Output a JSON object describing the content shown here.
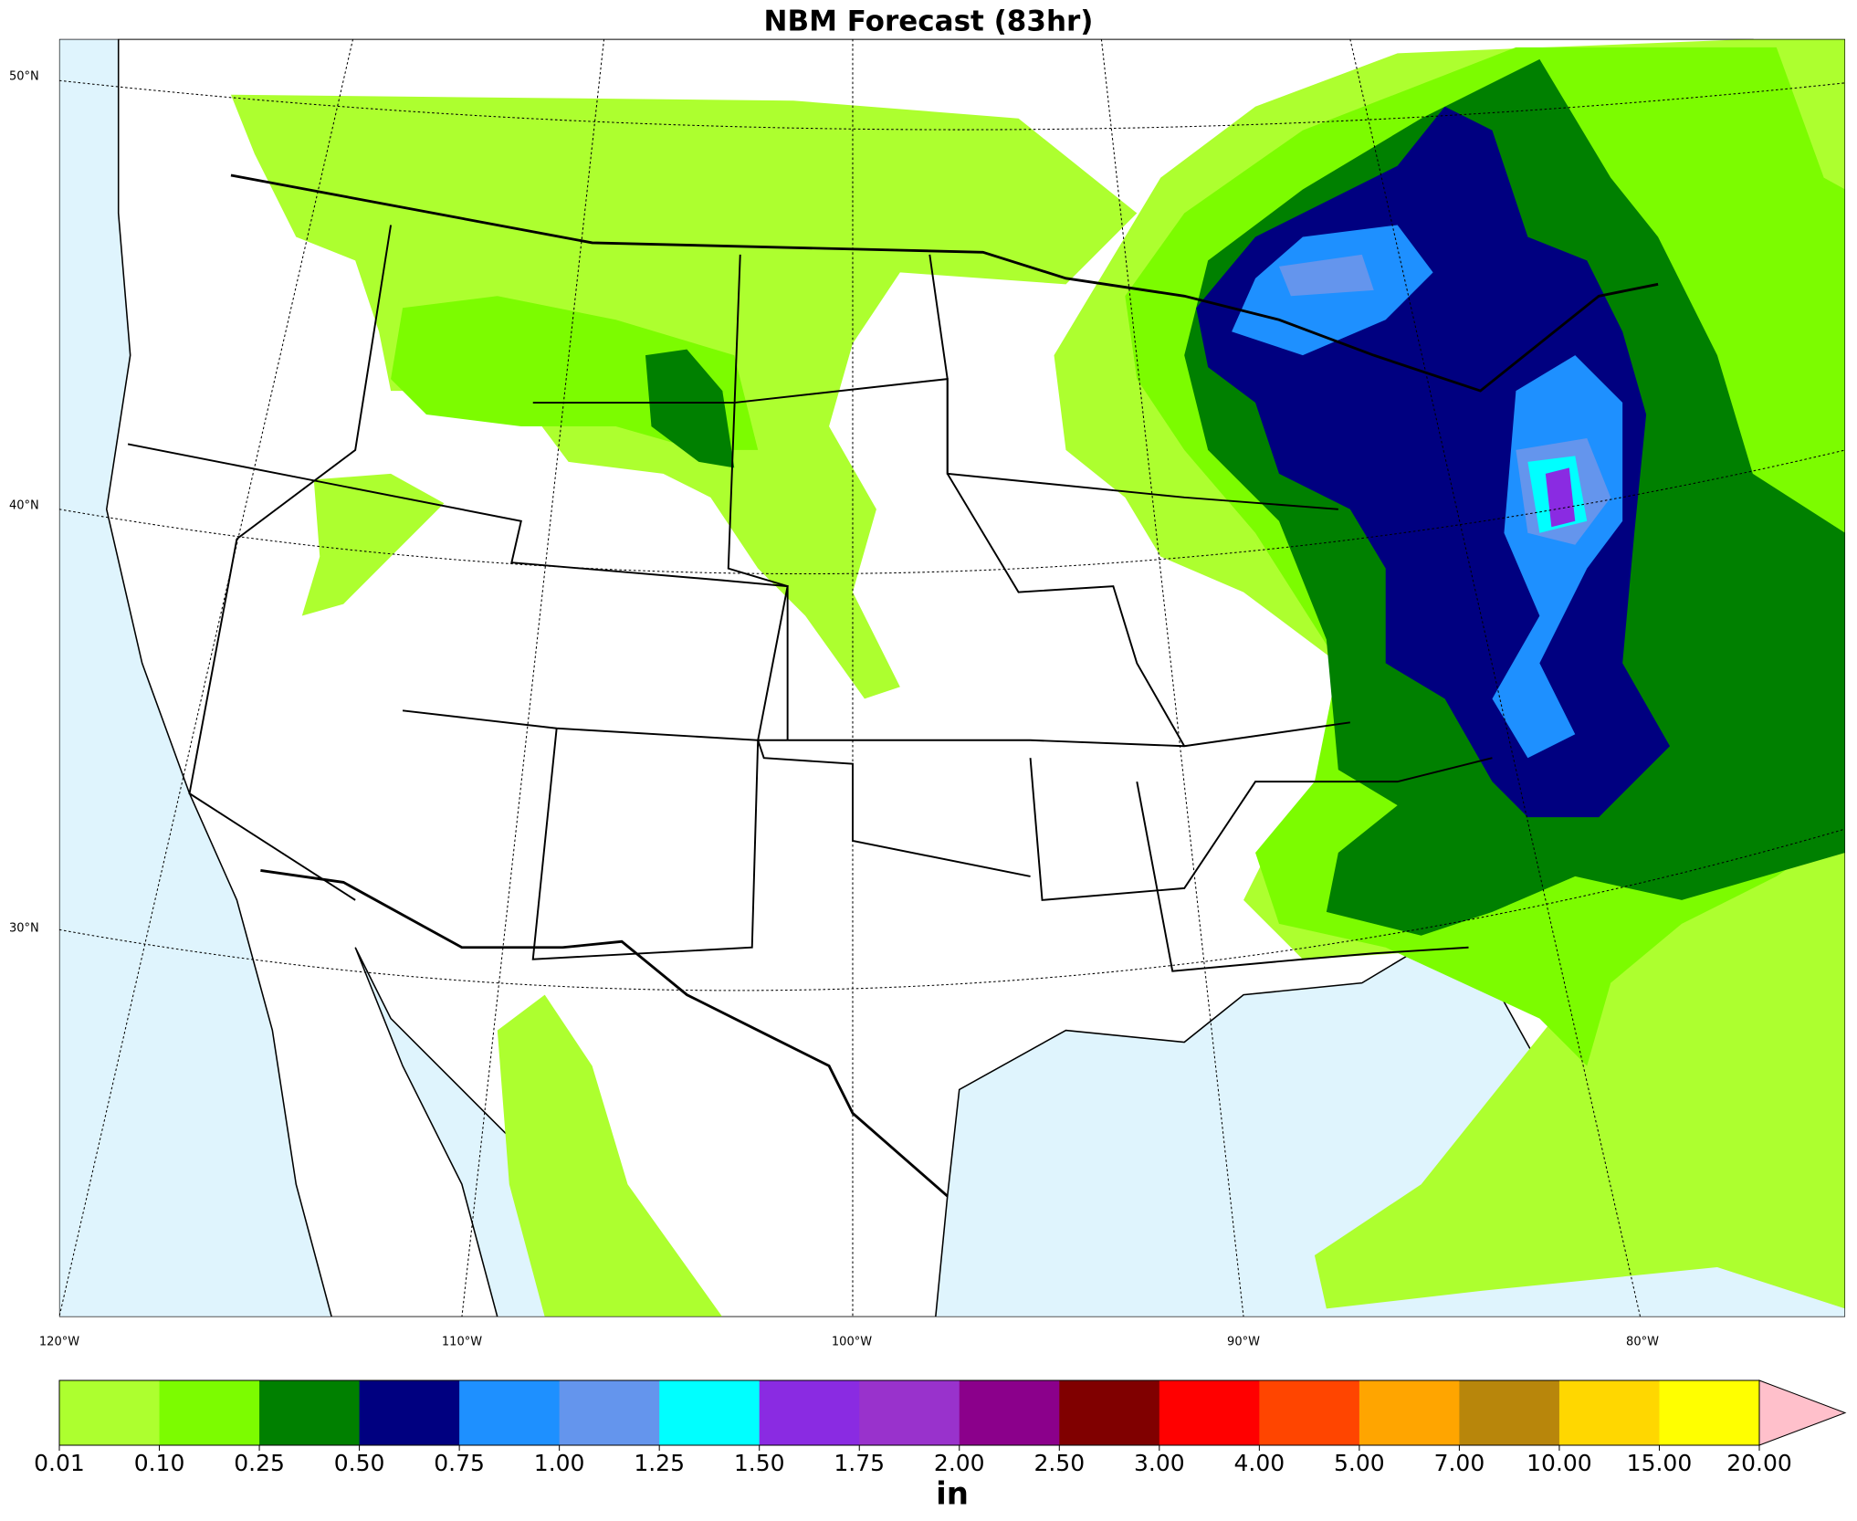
{
  "title": "NBM Forecast (83hr)",
  "lat_labels": [
    "50°N",
    "40°N",
    "30°N"
  ],
  "lon_labels": [
    "120°W",
    "110°W",
    "100°W",
    "90°W",
    "80°W"
  ],
  "colorbar": {
    "colors": [
      "#adff2f",
      "#7cfc00",
      "#008000",
      "#000080",
      "#1e90ff",
      "#6495ed",
      "#00ffff",
      "#8a2be2",
      "#9932cc",
      "#8b008b",
      "#800000",
      "#ff0000",
      "#ff4500",
      "#ffa500",
      "#b8860b",
      "#ffd700",
      "#ffff00"
    ],
    "extend_color": "#ffc0cb",
    "tick_labels": [
      "0.01",
      "0.10",
      "0.25",
      "0.50",
      "0.75",
      "1.00",
      "1.25",
      "1.50",
      "1.75",
      "2.00",
      "2.50",
      "3.00",
      "4.00",
      "5.00",
      "7.00",
      "10.00",
      "15.00",
      "20.00"
    ],
    "unit": "in"
  }
}
